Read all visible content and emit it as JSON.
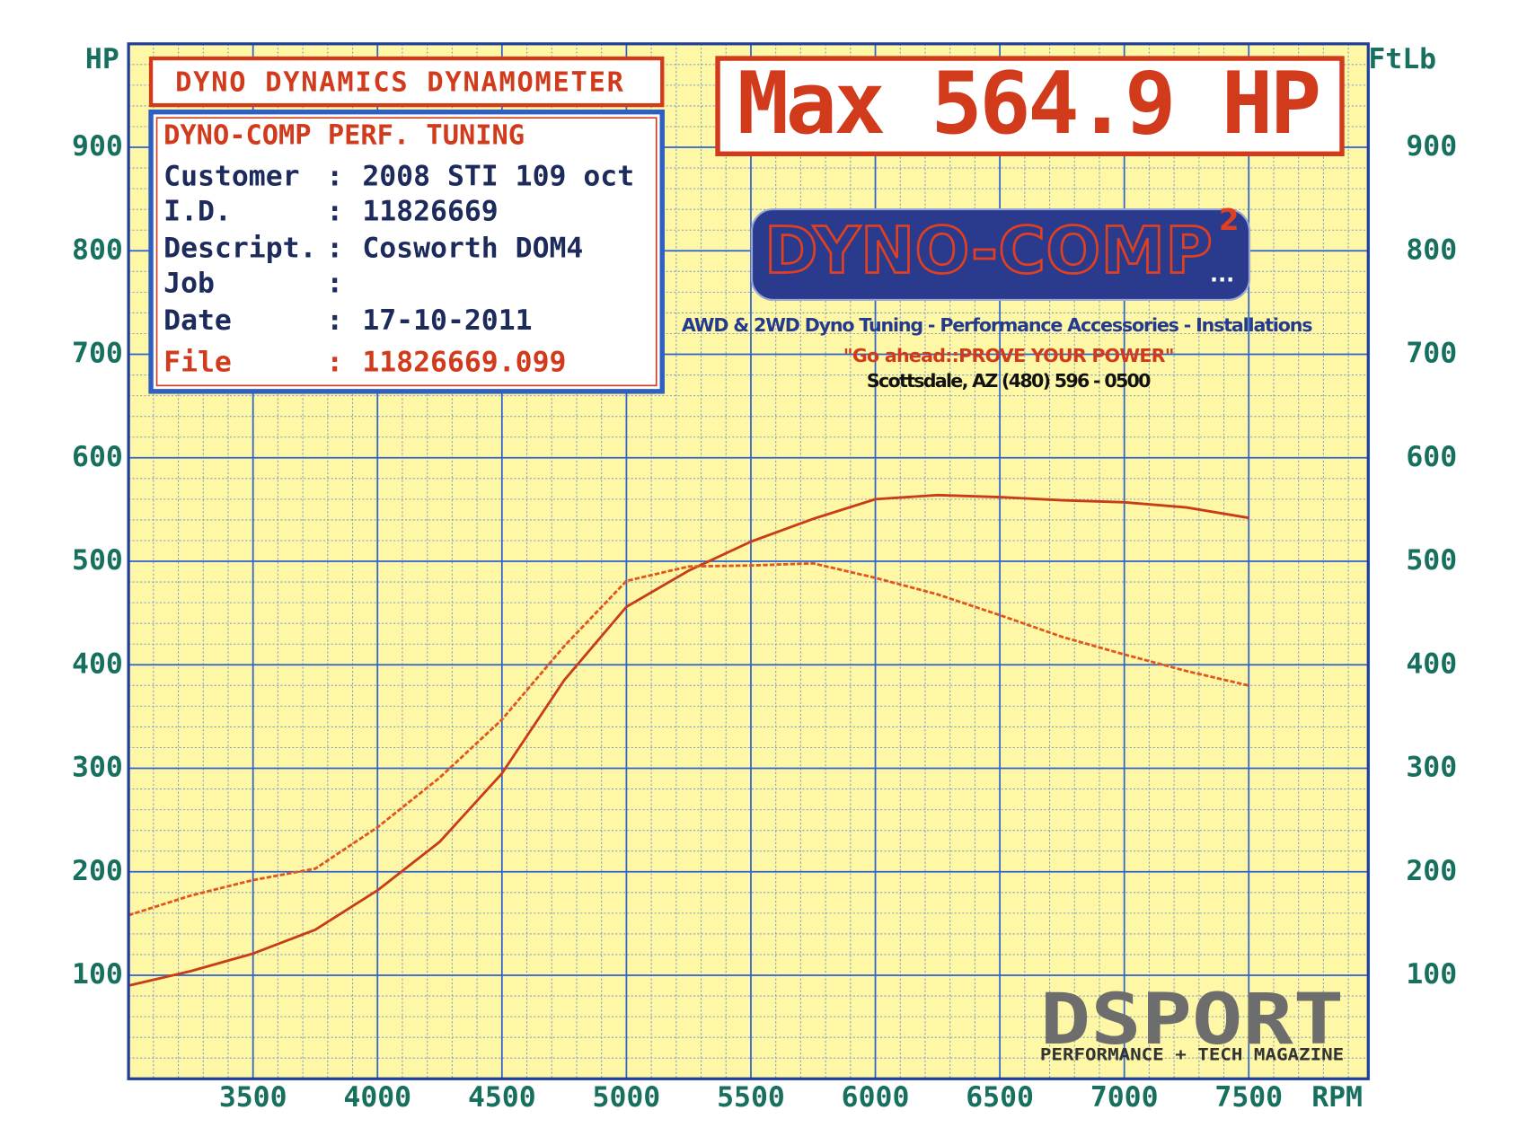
{
  "chart_data": {
    "type": "line",
    "title": "DYNO DYNAMICS DYNAMOMETER",
    "annotation": "Max 564.9 HP",
    "y_label": "HP",
    "y2_label": "FtLb",
    "x_label": "RPM",
    "x": [
      3000,
      3250,
      3500,
      3750,
      4000,
      4250,
      4500,
      4750,
      5000,
      5250,
      5500,
      5750,
      6000,
      6250,
      6500,
      6750,
      7000,
      7250,
      7500
    ],
    "xlim": [
      3000,
      7980
    ],
    "xticks": [
      3500,
      4000,
      4500,
      5000,
      5500,
      6000,
      6500,
      7000,
      7500
    ],
    "ylim": [
      0,
      1000
    ],
    "yticks": [
      100,
      200,
      300,
      400,
      500,
      600,
      700,
      800,
      900
    ],
    "y2lim": [
      0,
      1000
    ],
    "y2ticks": [
      100,
      200,
      300,
      400,
      500,
      600,
      700,
      800,
      900
    ],
    "grid": true,
    "series": [
      {
        "color": "#c83c18",
        "style": "solid",
        "values": [
          90,
          104,
          121,
          144,
          182,
          229,
          295,
          385,
          456,
          491,
          519,
          541,
          560,
          564,
          562,
          559,
          557,
          552,
          542
        ]
      },
      {
        "color": "#e0561e",
        "style": "dashed",
        "axis": "y2",
        "values": [
          158,
          177,
          192,
          203,
          243,
          291,
          347,
          418,
          481,
          495,
          496,
          498,
          484,
          468,
          448,
          427,
          410,
          394,
          380
        ]
      }
    ]
  },
  "info_box": {
    "title": "DYNO-COMP PERF. TUNING",
    "rows": [
      [
        "Customer",
        ":",
        "2008 STI 109 oct"
      ],
      [
        "I.D.",
        ":",
        "11826669"
      ],
      [
        "Descript.",
        ":",
        "Cosworth DOM4"
      ],
      [
        "Job",
        ":"
      ],
      [
        "Date",
        ":",
        "17-10-2011"
      ],
      [
        "File",
        ":",
        "11826669.099"
      ]
    ]
  },
  "logo": {
    "name": "DYNO-COMP",
    "superscript": "2",
    "dots": "...",
    "tagline": "AWD & 2WD Dyno Tuning - Performance Accessories - Installations",
    "slogan": "\"Go ahead::PROVE YOUR POWER\"",
    "contact": "Scottsdale, AZ (480) 596 - 0500"
  },
  "watermark": {
    "name": "DSPORT",
    "subtitle": "PERFORMANCE + TECH MAGAZINE"
  }
}
